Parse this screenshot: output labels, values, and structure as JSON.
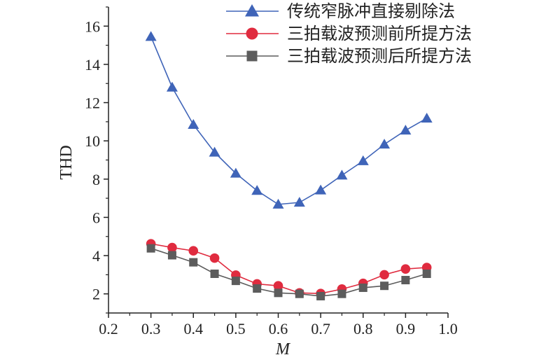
{
  "chart_data": {
    "type": "line",
    "title": "",
    "xlabel": "M",
    "ylabel": "THD",
    "xlim": [
      0.2,
      1.0
    ],
    "ylim": [
      1.0,
      17.0
    ],
    "xticks": [
      "0.2",
      "0.3",
      "0.4",
      "0.5",
      "0.6",
      "0.7",
      "0.8",
      "0.9",
      "1.0"
    ],
    "yticks": [
      "2",
      "4",
      "6",
      "8",
      "10",
      "12",
      "14",
      "16"
    ],
    "legend_position": "top-right",
    "grid": false,
    "x": [
      0.3,
      0.35,
      0.4,
      0.45,
      0.5,
      0.55,
      0.6,
      0.65,
      0.7,
      0.75,
      0.8,
      0.85,
      0.9,
      0.95
    ],
    "series": [
      {
        "name": "传统窄脉冲直接剔除法",
        "marker": "triangle",
        "color": "#3f64b8",
        "values": [
          15.45,
          12.8,
          10.85,
          9.4,
          8.3,
          7.4,
          6.68,
          6.78,
          7.42,
          8.2,
          8.95,
          9.82,
          10.55,
          11.18
        ]
      },
      {
        "name": "三拍载波预测前所提方法",
        "marker": "circle",
        "color": "#e02b3f",
        "values": [
          4.62,
          4.42,
          4.25,
          3.87,
          2.98,
          2.52,
          2.42,
          2.05,
          2.02,
          2.25,
          2.55,
          3.0,
          3.3,
          3.38
        ]
      },
      {
        "name": "三拍载波预测后所提方法",
        "marker": "square",
        "color": "#5c5c5c",
        "values": [
          4.38,
          4.02,
          3.65,
          3.05,
          2.68,
          2.28,
          2.05,
          2.0,
          1.88,
          2.0,
          2.32,
          2.42,
          2.72,
          3.05
        ]
      }
    ]
  }
}
